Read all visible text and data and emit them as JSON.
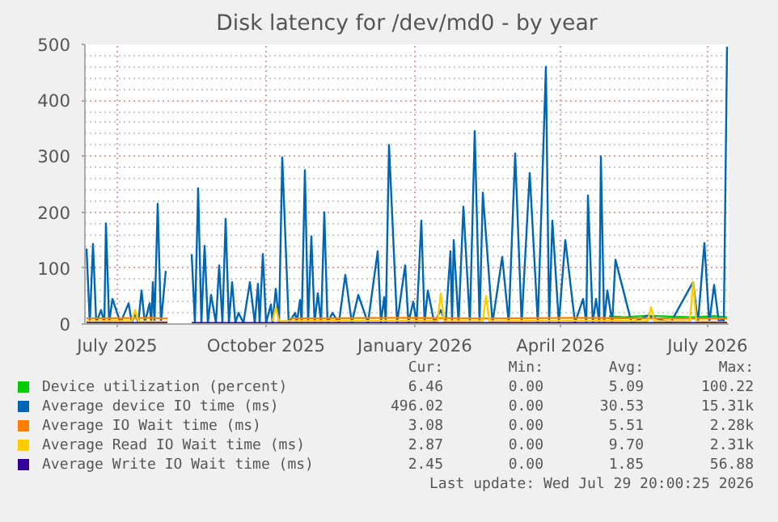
{
  "chart_data": {
    "type": "line",
    "title": "Disk latency for /dev/md0 - by year",
    "xlim": [
      "2025-06-11",
      "2026-07-14"
    ],
    "xticks": [
      {
        "value": "2025-07-01",
        "label": "July 2025"
      },
      {
        "value": "2025-10-01",
        "label": "October 2025"
      },
      {
        "value": "2026-01-01",
        "label": "January 2026"
      },
      {
        "value": "2026-04-01",
        "label": "April 2026"
      },
      {
        "value": "2026-07-01",
        "label": "July 2026"
      }
    ],
    "ylim": [
      0,
      500
    ],
    "yticks": [
      0,
      100,
      200,
      300,
      400,
      500
    ],
    "grid": true,
    "legend": "bottom",
    "series": [
      {
        "name": "Device utilization (percent)",
        "color": "#00cc00",
        "x": [
          "2026-05-01",
          "2026-05-10",
          "2026-05-25",
          "2026-06-10",
          "2026-06-22",
          "2026-07-05",
          "2026-07-13"
        ],
        "values": [
          14,
          12,
          15,
          13,
          12,
          14,
          12
        ]
      },
      {
        "name": "Average device IO time (ms)",
        "color": "#0066b3",
        "x": [
          "2025-06-12",
          "2025-06-14",
          "2025-06-16",
          "2025-06-18",
          "2025-06-21",
          "2025-06-23",
          "2025-06-24",
          "2025-06-26",
          "2025-06-28",
          "2025-07-03",
          "2025-07-08",
          "2025-07-10",
          "2025-07-12",
          "2025-07-14",
          "2025-07-16",
          "2025-07-18",
          "2025-07-21",
          "2025-07-22",
          "2025-07-23",
          "2025-07-24",
          "2025-07-26",
          "2025-07-28",
          "2025-07-31",
          "2025-08-01",
          "2025-08-16",
          "2025-08-18",
          "2025-08-20",
          "2025-08-22",
          "2025-08-24",
          "2025-08-26",
          "2025-08-28",
          "2025-08-31",
          "2025-09-02",
          "2025-09-04",
          "2025-09-06",
          "2025-09-08",
          "2025-09-10",
          "2025-09-12",
          "2025-09-14",
          "2025-09-17",
          "2025-09-21",
          "2025-09-24",
          "2025-09-26",
          "2025-09-27",
          "2025-09-29",
          "2025-10-01",
          "2025-10-04",
          "2025-10-05",
          "2025-10-07",
          "2025-10-09",
          "2025-10-11",
          "2025-10-15",
          "2025-10-19",
          "2025-10-20",
          "2025-10-22",
          "2025-10-23",
          "2025-10-25",
          "2025-10-27",
          "2025-10-29",
          "2025-10-31",
          "2025-11-02",
          "2025-11-04",
          "2025-11-06",
          "2025-11-08",
          "2025-11-11",
          "2025-11-15",
          "2025-11-19",
          "2025-11-23",
          "2025-11-27",
          "2025-12-03",
          "2025-12-09",
          "2025-12-11",
          "2025-12-13",
          "2025-12-14",
          "2025-12-16",
          "2025-12-21",
          "2025-12-26",
          "2025-12-28",
          "2025-12-31",
          "2026-01-02",
          "2026-01-05",
          "2026-01-07",
          "2026-01-09",
          "2026-01-13",
          "2026-01-17",
          "2026-01-20",
          "2026-01-23",
          "2026-01-24",
          "2026-01-25",
          "2026-01-28",
          "2026-01-31",
          "2026-02-04",
          "2026-02-07",
          "2026-02-10",
          "2026-02-12",
          "2026-02-18",
          "2026-02-24",
          "2026-02-28",
          "2026-03-04",
          "2026-03-08",
          "2026-03-13",
          "2026-03-18",
          "2026-03-23",
          "2026-03-25",
          "2026-03-27",
          "2026-03-31",
          "2026-04-04",
          "2026-04-10",
          "2026-04-15",
          "2026-04-17",
          "2026-04-18",
          "2026-04-21",
          "2026-04-23",
          "2026-04-25",
          "2026-04-26",
          "2026-04-28",
          "2026-04-30",
          "2026-05-03",
          "2026-05-05",
          "2026-05-15",
          "2026-05-25",
          "2026-06-08",
          "2026-06-22",
          "2026-06-25",
          "2026-06-29",
          "2026-07-02",
          "2026-07-05",
          "2026-07-08",
          "2026-07-10",
          "2026-07-11",
          "2026-07-13"
        ],
        "values": [
          135,
          2,
          143,
          2,
          25,
          2,
          180,
          2,
          45,
          2,
          37,
          2,
          20,
          2,
          60,
          2,
          37,
          2,
          75,
          2,
          215,
          2,
          95,
          null,
          125,
          2,
          243,
          2,
          140,
          2,
          52,
          2,
          105,
          2,
          188,
          2,
          75,
          2,
          20,
          2,
          75,
          2,
          72,
          2,
          125,
          2,
          35,
          2,
          63,
          2,
          298,
          2,
          20,
          2,
          43,
          2,
          275,
          2,
          157,
          2,
          55,
          2,
          200,
          2,
          20,
          2,
          88,
          2,
          52,
          2,
          130,
          2,
          48,
          2,
          320,
          2,
          105,
          2,
          40,
          2,
          185,
          2,
          60,
          2,
          25,
          2,
          130,
          2,
          150,
          2,
          210,
          2,
          345,
          2,
          235,
          2,
          120,
          2,
          305,
          2,
          270,
          2,
          460,
          2,
          185,
          2,
          150,
          2,
          45,
          2,
          230,
          2,
          45,
          2,
          300,
          2,
          60,
          2,
          115,
          2,
          15,
          2,
          75,
          2,
          145,
          2,
          70,
          2,
          10,
          2,
          496
        ]
      },
      {
        "name": "Average IO Wait time (ms)",
        "color": "#ff8000",
        "x": [
          "2025-06-12",
          "2025-07-20",
          "2025-08-01",
          "2025-08-08",
          "2025-10-15",
          "2025-12-20",
          "2026-02-15",
          "2026-04-10",
          "2026-06-01",
          "2026-07-13"
        ],
        "values": [
          10,
          11,
          10,
          null,
          10,
          11,
          10,
          11,
          10,
          10
        ]
      },
      {
        "name": "Average Read IO Wait time (ms)",
        "color": "#ffcc00",
        "x": [
          "2025-06-12",
          "2025-07-10",
          "2025-07-12",
          "2025-07-14",
          "2025-08-01",
          "2025-08-08",
          "2025-10-05",
          "2025-10-07",
          "2025-10-09",
          "2025-12-20",
          "2026-01-15",
          "2026-01-17",
          "2026-01-19",
          "2026-02-12",
          "2026-02-14",
          "2026-02-16",
          "2026-04-10",
          "2026-05-25",
          "2026-05-27",
          "2026-05-29",
          "2026-06-20",
          "2026-06-22",
          "2026-06-24",
          "2026-07-13"
        ],
        "values": [
          5,
          5,
          25,
          5,
          4,
          null,
          5,
          30,
          5,
          6,
          5,
          55,
          5,
          5,
          50,
          5,
          6,
          5,
          30,
          5,
          5,
          75,
          5,
          3
        ]
      },
      {
        "name": "Average Write IO Wait time (ms)",
        "color": "#330099",
        "x": [
          "2025-06-12",
          "2025-08-01",
          "2025-08-08",
          "2025-08-16",
          "2026-07-13"
        ],
        "values": [
          2,
          2,
          null,
          2,
          2
        ]
      }
    ],
    "annotations": [
      "Cur:",
      "Min:",
      "Avg:",
      "Max:",
      "6.46",
      "0.00",
      "5.09",
      "100.22",
      "496.02",
      "0.00",
      "30.53",
      "15.31k",
      "3.08",
      "0.00",
      "5.51",
      "2.28k",
      "2.87",
      "0.00",
      "9.70",
      "2.31k",
      "2.45",
      "0.00",
      "1.85",
      "56.88",
      "Last update: Wed Jul 29 20:00:25 2026"
    ]
  }
}
